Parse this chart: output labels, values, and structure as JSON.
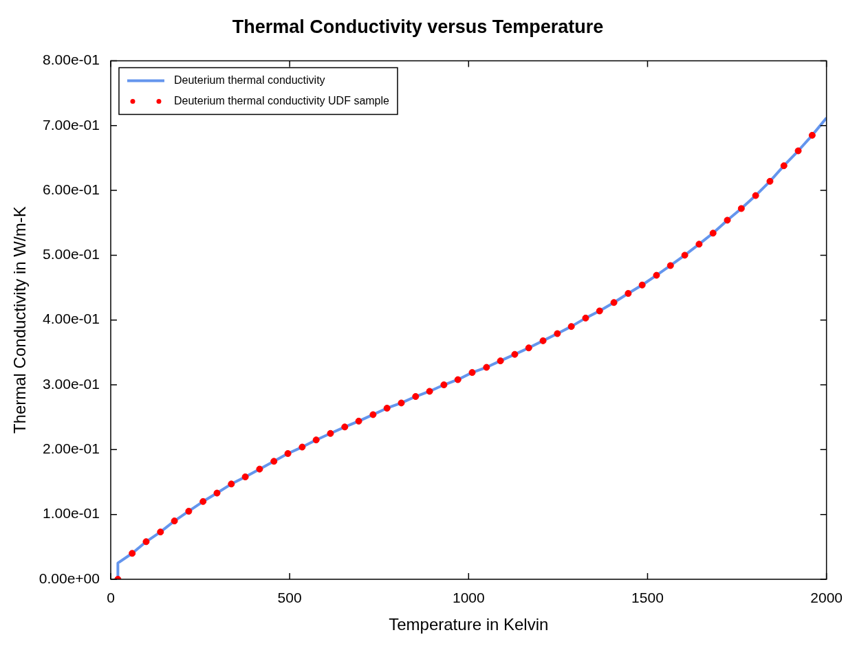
{
  "chart_data": {
    "type": "line",
    "title": "Thermal Conductivity versus Temperature",
    "xlabel": "Temperature in Kelvin",
    "ylabel": "Thermal Conductivity in W/m-K",
    "xlim": [
      0,
      2000
    ],
    "xticks": [
      0,
      500,
      1000,
      1500,
      2000
    ],
    "ylim": [
      0,
      0.8
    ],
    "yticks": [
      {
        "value": 0,
        "label": "0.00e+00"
      },
      {
        "value": 0.1,
        "label": "1.00e-01"
      },
      {
        "value": 0.2,
        "label": "2.00e-01"
      },
      {
        "value": 0.3,
        "label": "3.00e-01"
      },
      {
        "value": 0.4,
        "label": "4.00e-01"
      },
      {
        "value": 0.5,
        "label": "5.00e-01"
      },
      {
        "value": 0.6,
        "label": "6.00e-01"
      },
      {
        "value": 0.7,
        "label": "7.00e-01"
      },
      {
        "value": 0.8,
        "label": "8.00e-01"
      }
    ],
    "legend": "top left",
    "series": [
      {
        "name": "Deuterium thermal conductivity",
        "type": "line",
        "color": "#6495ed",
        "line_style": "solid",
        "x": [
          20,
          20,
          60,
          99,
          139,
          178,
          218,
          258,
          297,
          337,
          376,
          416,
          456,
          495,
          535,
          574,
          614,
          654,
          693,
          733,
          772,
          812,
          852,
          891,
          931,
          970,
          1010,
          1050,
          1089,
          1129,
          1168,
          1208,
          1248,
          1287,
          1327,
          1366,
          1406,
          1446,
          1485,
          1525,
          1564,
          1604,
          1644,
          1683,
          1723,
          1762,
          1802,
          1842,
          1881,
          1921,
          1960,
          2000
        ],
        "values": [
          0,
          0.025,
          0.04,
          0.058,
          0.073,
          0.09,
          0.105,
          0.12,
          0.133,
          0.147,
          0.158,
          0.17,
          0.182,
          0.194,
          0.204,
          0.215,
          0.225,
          0.235,
          0.244,
          0.254,
          0.264,
          0.272,
          0.282,
          0.29,
          0.3,
          0.308,
          0.319,
          0.327,
          0.337,
          0.347,
          0.357,
          0.368,
          0.379,
          0.39,
          0.403,
          0.414,
          0.427,
          0.441,
          0.454,
          0.469,
          0.484,
          0.5,
          0.517,
          0.534,
          0.554,
          0.572,
          0.592,
          0.614,
          0.638,
          0.661,
          0.685,
          0.712
        ]
      },
      {
        "name": "Deuterium thermal conductivity UDF sample",
        "type": "scatter",
        "color": "#ff0000",
        "marker": "circle",
        "x": [
          20,
          60,
          99,
          139,
          178,
          218,
          258,
          297,
          337,
          376,
          416,
          456,
          495,
          535,
          574,
          614,
          654,
          693,
          733,
          772,
          812,
          852,
          891,
          931,
          970,
          1010,
          1050,
          1089,
          1129,
          1168,
          1208,
          1248,
          1287,
          1327,
          1366,
          1406,
          1446,
          1485,
          1525,
          1564,
          1604,
          1644,
          1683,
          1723,
          1762,
          1802,
          1842,
          1881,
          1921,
          1960
        ],
        "values": [
          0,
          0.04,
          0.058,
          0.073,
          0.09,
          0.105,
          0.12,
          0.133,
          0.147,
          0.158,
          0.17,
          0.182,
          0.194,
          0.204,
          0.215,
          0.225,
          0.235,
          0.244,
          0.254,
          0.264,
          0.272,
          0.282,
          0.29,
          0.3,
          0.308,
          0.319,
          0.327,
          0.337,
          0.347,
          0.357,
          0.368,
          0.379,
          0.39,
          0.403,
          0.414,
          0.427,
          0.441,
          0.454,
          0.469,
          0.484,
          0.5,
          0.517,
          0.534,
          0.554,
          0.572,
          0.592,
          0.614,
          0.638,
          0.661,
          0.685
        ]
      }
    ]
  }
}
